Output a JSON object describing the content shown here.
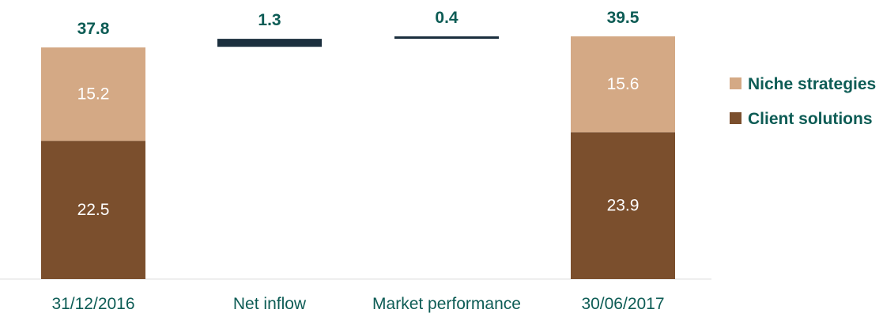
{
  "chart_data": {
    "type": "bar",
    "variant": "stacked-waterfall",
    "unit": "",
    "categories": [
      "31/12/2016",
      "Net inflow",
      "Market performance",
      "30/06/2017"
    ],
    "stack_series": [
      {
        "name": "Client solutions",
        "values": [
          22.5,
          null,
          null,
          23.9
        ],
        "color": "#7b4f2d"
      },
      {
        "name": "Niche strategies",
        "values": [
          15.2,
          null,
          null,
          15.6
        ],
        "color": "#d4a985"
      }
    ],
    "totals": [
      37.8,
      null,
      null,
      39.5
    ],
    "changes": [
      {
        "category": "Net inflow",
        "value": 1.3,
        "label": "1.3",
        "from": 37.8
      },
      {
        "category": "Market performance",
        "value": 0.4,
        "label": "0.4",
        "from": 39.1
      }
    ],
    "total_labels": [
      "37.8",
      "1.3",
      "0.4",
      "39.5"
    ],
    "segment_labels": {
      "31/12/2016": {
        "Client solutions": "22.5",
        "Niche strategies": "15.2"
      },
      "30/06/2017": {
        "Client solutions": "23.9",
        "Niche strategies": "15.6"
      }
    },
    "legend": [
      "Niche strategies",
      "Client solutions"
    ],
    "legend_position": "right",
    "ylim": [
      0,
      39.5
    ],
    "grid": false,
    "colors": {
      "label_text": "#0d5c55",
      "change_line": "#1b2f3e",
      "axis_line": "#e8e8e8"
    }
  }
}
